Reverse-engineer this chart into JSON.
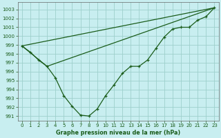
{
  "title": "Graphe pression niveau de la mer (hPa)",
  "background_color": "#c8eef0",
  "grid_color": "#9dcfcc",
  "line_color": "#1a5c1a",
  "marker_color": "#1a5c1a",
  "xlim": [
    -0.5,
    23.5
  ],
  "ylim": [
    990.5,
    1003.8
  ],
  "yticks": [
    991,
    992,
    993,
    994,
    995,
    996,
    997,
    998,
    999,
    1000,
    1001,
    1002,
    1003
  ],
  "xticks": [
    0,
    1,
    2,
    3,
    4,
    5,
    6,
    7,
    8,
    9,
    10,
    11,
    12,
    13,
    14,
    15,
    16,
    17,
    18,
    19,
    20,
    21,
    22,
    23
  ],
  "line1_x": [
    0,
    1,
    2,
    3,
    4,
    5,
    6,
    7,
    8,
    9,
    10,
    11,
    12,
    13,
    14,
    15,
    16,
    17,
    18,
    19,
    20,
    21,
    22,
    23
  ],
  "line1_y": [
    998.9,
    998.2,
    997.3,
    996.6,
    995.3,
    993.3,
    992.1,
    991.1,
    991.0,
    991.8,
    993.3,
    994.5,
    995.8,
    996.6,
    996.6,
    997.3,
    998.6,
    999.9,
    1000.8,
    1001.0,
    1001.0,
    1001.8,
    1002.2,
    1003.2
  ],
  "line2_x": [
    0,
    23
  ],
  "line2_y": [
    998.9,
    1003.2
  ],
  "line3_x": [
    0,
    3,
    23
  ],
  "line3_y": [
    998.9,
    996.6,
    1003.2
  ],
  "tick_fontsize": 5.0,
  "xlabel_fontsize": 5.8,
  "figsize": [
    3.2,
    2.0
  ],
  "dpi": 100
}
